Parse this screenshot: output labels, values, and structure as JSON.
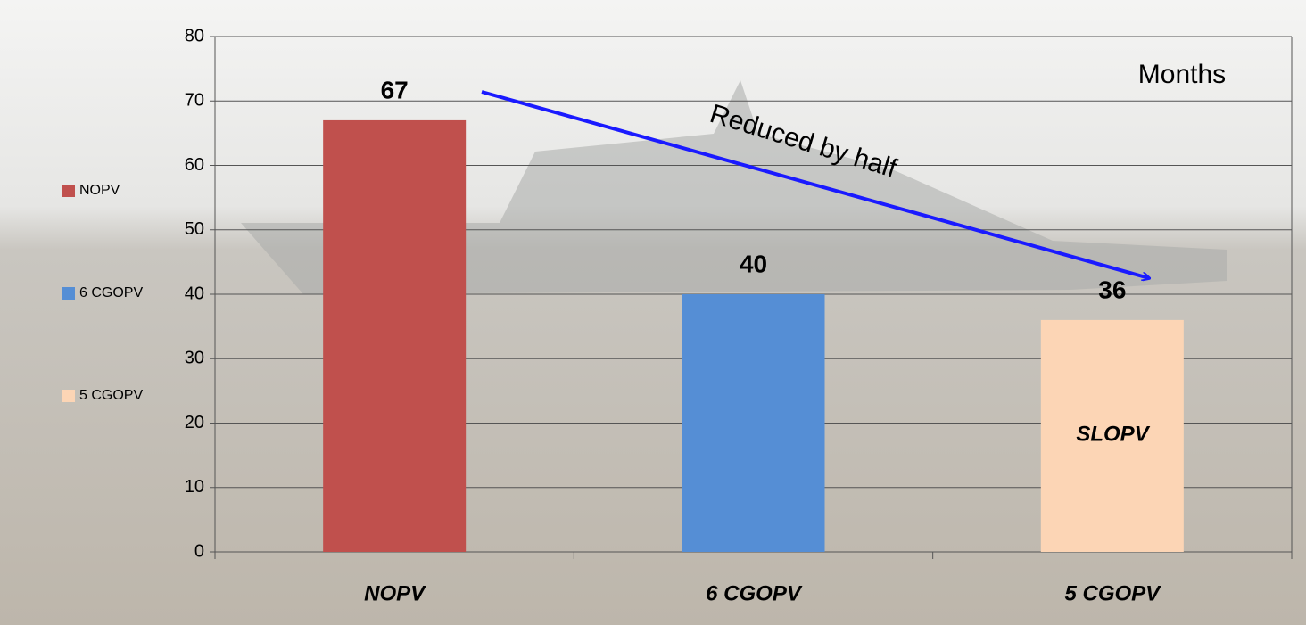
{
  "chart_data": {
    "type": "bar",
    "categories": [
      "NOPV",
      "6 CGOPV",
      "5 CGOPV"
    ],
    "values": [
      67,
      40,
      36
    ],
    "colors": [
      "#c0504d",
      "#558ed5",
      "#fcd5b5"
    ],
    "ylim": [
      0,
      80
    ],
    "yticks": [
      0,
      10,
      20,
      30,
      40,
      50,
      60,
      70,
      80
    ],
    "grid": true,
    "legend": "left",
    "annotations": [
      "Months",
      "Reduced by half",
      "SLOPV"
    ]
  }
}
